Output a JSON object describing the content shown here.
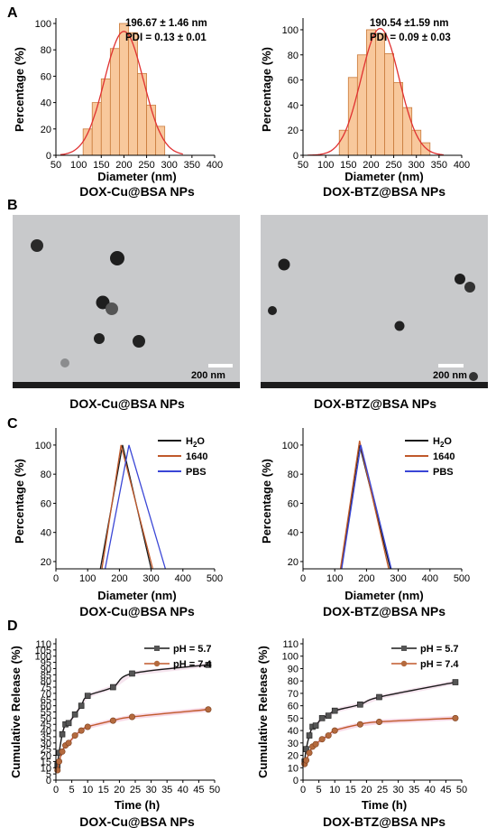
{
  "panels": {
    "a": "A",
    "b": "B",
    "c": "C",
    "d": "D"
  },
  "colors": {
    "bar_fill": "#f8c89c",
    "bar_stroke": "#c97b3c",
    "fit": "#e03131",
    "h2o": "#1a1a1a",
    "rpmi": "#c0592b",
    "pbs": "#3a46d6",
    "ph57": "#1a1a1a",
    "ph74": "#c0592b",
    "tem_bg": "#c7c8ca"
  },
  "tem": [
    {
      "scale_label": "200 nm",
      "title": "DOX-Cu@BSA NPs"
    },
    {
      "scale_label": "200 nm",
      "title": "DOX-BTZ@BSA NPs"
    }
  ],
  "chart_data": [
    {
      "type": "bar",
      "title": "DOX-Cu@BSA NPs",
      "xlabel": "Diameter (nm)",
      "ylabel": "Percentage (%)",
      "xlim": [
        50,
        400
      ],
      "ylim": [
        0,
        100
      ],
      "xticks": [
        50,
        100,
        150,
        200,
        250,
        300,
        350,
        400
      ],
      "yticks": [
        0,
        20,
        40,
        60,
        80,
        100
      ],
      "annotation": [
        "196.67 ± 1.46 nm",
        "PDI = 0.13 ± 0.01"
      ],
      "bins": [
        [
          110,
          130,
          20
        ],
        [
          130,
          150,
          40
        ],
        [
          150,
          170,
          58
        ],
        [
          170,
          190,
          81
        ],
        [
          190,
          210,
          100
        ],
        [
          210,
          230,
          93
        ],
        [
          230,
          250,
          62
        ],
        [
          250,
          270,
          38
        ],
        [
          270,
          290,
          22
        ]
      ],
      "fit": {
        "mean": 200,
        "sd": 43,
        "peak": 94
      }
    },
    {
      "type": "bar",
      "title": "DOX-BTZ@BSA NPs",
      "xlabel": "Diameter (nm)",
      "ylabel": "Percentage (%)",
      "xlim": [
        50,
        400
      ],
      "ylim": [
        0,
        105
      ],
      "xticks": [
        50,
        100,
        150,
        200,
        250,
        300,
        350,
        400
      ],
      "yticks": [
        0,
        20,
        40,
        60,
        80,
        100
      ],
      "annotation": [
        "190.54 ±1.59 nm",
        "PDI = 0.09 ± 0.03"
      ],
      "bins": [
        [
          130,
          150,
          20
        ],
        [
          150,
          170,
          62
        ],
        [
          170,
          190,
          80
        ],
        [
          190,
          210,
          100
        ],
        [
          210,
          230,
          97
        ],
        [
          230,
          250,
          81
        ],
        [
          250,
          270,
          58
        ],
        [
          270,
          290,
          38
        ],
        [
          290,
          310,
          20
        ],
        [
          310,
          330,
          10
        ]
      ],
      "fit": {
        "mean": 220,
        "sd": 42,
        "peak": 101
      }
    },
    {
      "type": "line",
      "title": "DOX-Cu@BSA NPs",
      "xlabel": "Diameter (nm)",
      "ylabel": "Percentage (%)",
      "xlim": [
        0,
        500
      ],
      "ylim": [
        15,
        108
      ],
      "xticks": [
        0,
        100,
        200,
        300,
        400,
        500
      ],
      "yticks": [
        20,
        40,
        60,
        80,
        100
      ],
      "series": [
        {
          "name": "H2O",
          "label_main": "H",
          "label_sub": "2",
          "label_tail": "O",
          "color": "#1a1a1a",
          "points": [
            [
              140,
              0
            ],
            [
              210,
              100
            ],
            [
              300,
              0
            ]
          ]
        },
        {
          "name": "1640",
          "label_main": "1640",
          "color": "#c0592b",
          "points": [
            [
              145,
              0
            ],
            [
              205,
              100
            ],
            [
              305,
              0
            ]
          ]
        },
        {
          "name": "PBS",
          "label_main": "PBS",
          "color": "#3a46d6",
          "points": [
            [
              155,
              0
            ],
            [
              230,
              100
            ],
            [
              345,
              0
            ]
          ]
        }
      ]
    },
    {
      "type": "line",
      "title": "DOX-BTZ@BSA NPs",
      "xlabel": "Diameter (nm)",
      "ylabel": "Percentage (%)",
      "xlim": [
        0,
        500
      ],
      "ylim": [
        15,
        108
      ],
      "xticks": [
        0,
        100,
        200,
        300,
        400,
        500
      ],
      "yticks": [
        20,
        40,
        60,
        80,
        100
      ],
      "series": [
        {
          "name": "H2O",
          "label_main": "H",
          "label_sub": "2",
          "label_tail": "O",
          "color": "#1a1a1a",
          "points": [
            [
              120,
              0
            ],
            [
              178,
              100
            ],
            [
              275,
              0
            ]
          ]
        },
        {
          "name": "1640",
          "label_main": "1640",
          "color": "#c0592b",
          "points": [
            [
              118,
              0
            ],
            [
              178,
              103
            ],
            [
              270,
              0
            ]
          ]
        },
        {
          "name": "PBS",
          "label_main": "PBS",
          "color": "#3a46d6",
          "points": [
            [
              122,
              0
            ],
            [
              182,
              100
            ],
            [
              278,
              0
            ]
          ]
        }
      ]
    },
    {
      "type": "line",
      "title": "DOX-Cu@BSA NPs",
      "xlabel": "Time (h)",
      "ylabel": "Cumulative Release (%)",
      "xlim": [
        0,
        50
      ],
      "ylim": [
        0,
        110
      ],
      "xticks": [
        0,
        5,
        10,
        15,
        20,
        25,
        30,
        35,
        40,
        45,
        50
      ],
      "yticks": [
        0,
        5,
        10,
        15,
        20,
        25,
        30,
        35,
        40,
        45,
        50,
        55,
        60,
        65,
        70,
        75,
        80,
        85,
        90,
        95,
        100,
        105,
        110
      ],
      "series": [
        {
          "name": "pH = 5.7",
          "color": "#1a1a1a",
          "marker": "square",
          "x": [
            0.5,
            1,
            2,
            3,
            4,
            6,
            8,
            10,
            18,
            24,
            48
          ],
          "y": [
            12,
            22,
            37,
            45,
            46,
            53,
            60,
            68,
            75,
            86,
            93
          ]
        },
        {
          "name": "pH = 7.4",
          "color": "#c0592b",
          "marker": "circle",
          "x": [
            0.5,
            1,
            2,
            3,
            4,
            6,
            8,
            10,
            18,
            24,
            48
          ],
          "y": [
            8,
            15,
            23,
            28,
            30,
            36,
            40,
            43,
            48,
            51,
            57
          ]
        }
      ]
    },
    {
      "type": "line",
      "title": "DOX-BTZ@BSA NPs",
      "xlabel": "Time (h)",
      "ylabel": "Cumulative Release (%)",
      "xlim": [
        0,
        50
      ],
      "ylim": [
        0,
        110
      ],
      "xticks": [
        0,
        5,
        10,
        15,
        20,
        25,
        30,
        35,
        40,
        45,
        50
      ],
      "yticks": [
        0,
        10,
        20,
        30,
        40,
        50,
        60,
        70,
        80,
        90,
        100,
        110
      ],
      "series": [
        {
          "name": "pH = 5.7",
          "color": "#1a1a1a",
          "marker": "square",
          "x": [
            0.5,
            1,
            2,
            3,
            4,
            6,
            8,
            10,
            18,
            24,
            48
          ],
          "y": [
            15,
            25,
            36,
            43,
            44,
            50,
            52,
            56,
            61,
            67,
            79
          ]
        },
        {
          "name": "pH = 7.4",
          "color": "#c0592b",
          "marker": "circle",
          "x": [
            0.5,
            1,
            2,
            3,
            4,
            6,
            8,
            10,
            18,
            24,
            48
          ],
          "y": [
            13,
            16,
            22,
            27,
            29,
            33,
            36,
            40,
            45,
            47,
            50
          ]
        }
      ]
    }
  ]
}
